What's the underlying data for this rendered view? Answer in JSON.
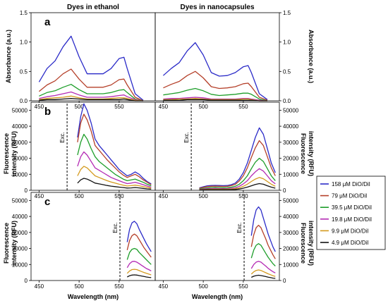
{
  "columns": [
    "Dyes in ethanol",
    "Dyes in nanocapsules"
  ],
  "y_labels": {
    "absorbance": "Absorbance (a.u.)",
    "fluorescence": [
      "Fluorescence",
      "intensity (RFU)"
    ]
  },
  "x_label": "Wavelength (nm)",
  "exc_label": "Exc.",
  "legend": [
    {
      "name": "158 μM DiO/DiI",
      "color": "#2b2bc8"
    },
    {
      "name": "79 μM DiO/DiI",
      "color": "#b5402a"
    },
    {
      "name": "39.5 μM DiO/DiI",
      "color": "#1e9e2a"
    },
    {
      "name": "19.8 μM DiO/DiI",
      "color": "#b42ab4"
    },
    {
      "name": "9.9 μM DiO/DiI",
      "color": "#d49a1e"
    },
    {
      "name": "4.9 μM DiO/DiI",
      "color": "#111111"
    }
  ],
  "chart_data": [
    {
      "id": "a-ethanol",
      "panel": "a",
      "type": "line",
      "xlim": [
        440,
        595
      ],
      "ylim": [
        0,
        1.5
      ],
      "xticks": [
        450,
        500,
        550
      ],
      "yticks": [
        0.0,
        0.5,
        1.0,
        1.5
      ],
      "ytick_labels": [
        "0.0",
        "0.5",
        "1.0",
        "1.5"
      ],
      "x": [
        450,
        460,
        470,
        480,
        490,
        500,
        510,
        520,
        530,
        540,
        550,
        556,
        560,
        570,
        580
      ],
      "series": [
        {
          "values": [
            0.32,
            0.55,
            0.68,
            0.92,
            1.1,
            0.75,
            0.46,
            0.46,
            0.46,
            0.55,
            0.72,
            0.74,
            0.55,
            0.12,
            0.01
          ]
        },
        {
          "values": [
            0.16,
            0.27,
            0.34,
            0.46,
            0.54,
            0.37,
            0.23,
            0.23,
            0.23,
            0.27,
            0.36,
            0.37,
            0.27,
            0.06,
            0.0
          ]
        },
        {
          "values": [
            0.08,
            0.14,
            0.17,
            0.23,
            0.28,
            0.19,
            0.12,
            0.12,
            0.12,
            0.14,
            0.18,
            0.19,
            0.14,
            0.03,
            0.0
          ]
        },
        {
          "values": [
            0.04,
            0.07,
            0.09,
            0.12,
            0.15,
            0.1,
            0.06,
            0.06,
            0.06,
            0.07,
            0.09,
            0.1,
            0.07,
            0.02,
            0.0
          ]
        },
        {
          "values": [
            0.02,
            0.04,
            0.05,
            0.06,
            0.08,
            0.05,
            0.03,
            0.03,
            0.03,
            0.04,
            0.05,
            0.05,
            0.04,
            0.01,
            0.0
          ]
        },
        {
          "values": [
            0.01,
            0.02,
            0.02,
            0.03,
            0.04,
            0.03,
            0.02,
            0.02,
            0.02,
            0.02,
            0.02,
            0.03,
            0.02,
            0.0,
            0.0
          ]
        }
      ]
    },
    {
      "id": "a-nano",
      "panel": "",
      "type": "line",
      "xlim": [
        440,
        595
      ],
      "ylim": [
        0,
        1.5
      ],
      "xticks": [
        450,
        500,
        550
      ],
      "yticks": [
        0.0,
        0.5,
        1.0,
        1.5
      ],
      "ytick_labels": [
        "0.0",
        "0.5",
        "1.0",
        "1.5"
      ],
      "x": [
        450,
        460,
        470,
        480,
        490,
        500,
        510,
        520,
        530,
        540,
        550,
        556,
        560,
        570,
        580
      ],
      "series": [
        {
          "values": [
            0.43,
            0.55,
            0.65,
            0.85,
            0.99,
            0.78,
            0.48,
            0.42,
            0.43,
            0.48,
            0.58,
            0.6,
            0.48,
            0.12,
            0.02
          ]
        },
        {
          "values": [
            0.22,
            0.28,
            0.33,
            0.43,
            0.5,
            0.39,
            0.24,
            0.21,
            0.22,
            0.24,
            0.29,
            0.3,
            0.24,
            0.06,
            0.01
          ]
        },
        {
          "values": [
            0.1,
            0.12,
            0.14,
            0.18,
            0.21,
            0.17,
            0.11,
            0.09,
            0.1,
            0.11,
            0.13,
            0.13,
            0.11,
            0.03,
            0.0
          ]
        },
        {
          "values": [
            0.03,
            0.04,
            0.04,
            0.05,
            0.06,
            0.05,
            0.03,
            0.03,
            0.03,
            0.03,
            0.04,
            0.04,
            0.03,
            0.01,
            0.0
          ]
        },
        {
          "values": [
            0.02,
            0.02,
            0.03,
            0.03,
            0.04,
            0.03,
            0.02,
            0.02,
            0.02,
            0.02,
            0.03,
            0.03,
            0.02,
            0.0,
            0.0
          ]
        },
        {
          "values": [
            0.01,
            0.01,
            0.01,
            0.02,
            0.02,
            0.02,
            0.01,
            0.01,
            0.01,
            0.01,
            0.01,
            0.01,
            0.01,
            0.0,
            0.0
          ]
        }
      ]
    },
    {
      "id": "b-ethanol",
      "panel": "b",
      "type": "line",
      "xlim": [
        440,
        595
      ],
      "ylim": [
        0,
        55000
      ],
      "xticks": [
        450,
        500,
        550
      ],
      "yticks": [
        0,
        10000,
        20000,
        30000,
        40000,
        50000
      ],
      "ytick_labels": [
        "0",
        "10000",
        "20000",
        "30000",
        "40000",
        "50000"
      ],
      "exc_x": 485,
      "x": [
        498,
        502,
        506,
        510,
        515,
        520,
        525,
        530,
        535,
        540,
        545,
        550,
        555,
        560,
        565,
        570,
        575,
        580,
        585,
        590
      ],
      "series": [
        {
          "values": [
            33000,
            46000,
            54000,
            50000,
            42000,
            32000,
            28000,
            25000,
            22000,
            19000,
            16000,
            13000,
            11000,
            9000,
            10000,
            11500,
            10000,
            7500,
            5500,
            4000
          ]
        },
        {
          "values": [
            30000,
            42000,
            47500,
            44000,
            37000,
            28000,
            25000,
            22000,
            19000,
            16500,
            14000,
            11500,
            9500,
            8000,
            9000,
            10000,
            8500,
            6500,
            5000,
            3500
          ]
        },
        {
          "values": [
            22000,
            30000,
            35000,
            32000,
            26000,
            21000,
            18000,
            16000,
            14000,
            12000,
            10000,
            8500,
            7000,
            6000,
            6500,
            7000,
            6000,
            5000,
            3800,
            2800
          ]
        },
        {
          "values": [
            15000,
            21000,
            24000,
            22000,
            18000,
            14000,
            12500,
            11000,
            9500,
            8000,
            7000,
            6000,
            5000,
            4200,
            4500,
            5000,
            4300,
            3500,
            2700,
            2000
          ]
        },
        {
          "values": [
            9000,
            13000,
            15000,
            14000,
            11500,
            9000,
            8000,
            7000,
            6000,
            5200,
            4500,
            3800,
            3200,
            2700,
            2900,
            3200,
            2800,
            2300,
            1800,
            1300
          ]
        },
        {
          "values": [
            4500,
            6500,
            7500,
            7000,
            5800,
            4500,
            4000,
            3500,
            3000,
            2600,
            2300,
            2000,
            1700,
            1400,
            1500,
            1700,
            1500,
            1200,
            900,
            700
          ]
        }
      ]
    },
    {
      "id": "b-nano",
      "panel": "",
      "type": "line",
      "xlim": [
        440,
        595
      ],
      "ylim": [
        0,
        55000
      ],
      "xticks": [
        450,
        500,
        550
      ],
      "yticks": [
        0,
        10000,
        20000,
        30000,
        40000,
        50000
      ],
      "ytick_labels": [
        "0",
        "10000",
        "20000",
        "30000",
        "40000",
        "50000"
      ],
      "exc_x": 485,
      "x": [
        495,
        500,
        505,
        510,
        515,
        520,
        525,
        530,
        535,
        540,
        545,
        550,
        555,
        560,
        565,
        570,
        575,
        580,
        585,
        590
      ],
      "series": [
        {
          "values": [
            1500,
            2200,
            2800,
            3000,
            3100,
            3000,
            2900,
            3000,
            3500,
            4500,
            7000,
            11000,
            17000,
            25000,
            33000,
            39000,
            35000,
            26000,
            17000,
            11000
          ]
        },
        {
          "values": [
            1200,
            1800,
            2300,
            2500,
            2600,
            2500,
            2400,
            2500,
            2900,
            3700,
            5800,
            9000,
            14000,
            20500,
            26500,
            31000,
            28000,
            21000,
            14000,
            9000
          ]
        },
        {
          "values": [
            800,
            1200,
            1500,
            1700,
            1800,
            1700,
            1600,
            1700,
            2000,
            2500,
            3800,
            6000,
            9000,
            13500,
            17500,
            20000,
            18000,
            13500,
            9000,
            6000
          ]
        },
        {
          "values": [
            500,
            800,
            1000,
            1100,
            1200,
            1100,
            1000,
            1100,
            1300,
            1600,
            2500,
            4000,
            6000,
            9000,
            11500,
            13500,
            12000,
            9000,
            6000,
            4000
          ]
        },
        {
          "values": [
            300,
            500,
            600,
            700,
            700,
            700,
            650,
            700,
            800,
            1000,
            1500,
            2500,
            3800,
            5500,
            7000,
            8000,
            7200,
            5500,
            3800,
            2500
          ]
        },
        {
          "values": [
            200,
            300,
            350,
            400,
            400,
            400,
            350,
            400,
            450,
            550,
            800,
            1300,
            2000,
            2800,
            3600,
            4200,
            3800,
            2800,
            2000,
            1300
          ]
        }
      ]
    },
    {
      "id": "c-ethanol",
      "panel": "c",
      "type": "line",
      "xlim": [
        440,
        595
      ],
      "ylim": [
        0,
        55000
      ],
      "xticks": [
        450,
        500,
        550
      ],
      "yticks": [
        0,
        10000,
        20000,
        30000,
        40000,
        50000
      ],
      "ytick_labels": [
        "0",
        "10000",
        "20000",
        "30000",
        "40000",
        "50000"
      ],
      "exc_x": 551,
      "x": [
        560,
        563,
        566,
        569,
        572,
        575,
        578,
        581,
        584,
        587,
        590
      ],
      "series": [
        {
          "values": [
            24000,
            32000,
            36000,
            37000,
            35500,
            32000,
            29000,
            26000,
            23000,
            20500,
            18000
          ]
        },
        {
          "values": [
            19000,
            25000,
            28000,
            29000,
            28000,
            25500,
            23000,
            20500,
            18500,
            16500,
            14500
          ]
        },
        {
          "values": [
            13000,
            17500,
            19500,
            20000,
            19500,
            17500,
            16000,
            14500,
            13000,
            11500,
            10000
          ]
        },
        {
          "values": [
            8000,
            10500,
            11800,
            12000,
            11500,
            10500,
            9500,
            8500,
            7500,
            6800,
            6000
          ]
        },
        {
          "values": [
            4500,
            6000,
            6800,
            7000,
            6800,
            6200,
            5600,
            5000,
            4500,
            4000,
            3500
          ]
        },
        {
          "values": [
            2200,
            3000,
            3400,
            3500,
            3400,
            3100,
            2800,
            2500,
            2200,
            2000,
            1800
          ]
        }
      ]
    },
    {
      "id": "c-nano",
      "panel": "",
      "type": "line",
      "xlim": [
        440,
        595
      ],
      "ylim": [
        0,
        55000
      ],
      "xticks": [
        450,
        500,
        550
      ],
      "yticks": [
        0,
        10000,
        20000,
        30000,
        40000,
        50000
      ],
      "ytick_labels": [
        "0",
        "10000",
        "20000",
        "30000",
        "40000",
        "50000"
      ],
      "exc_x": 551,
      "x": [
        560,
        563,
        566,
        569,
        572,
        575,
        578,
        581,
        584,
        587,
        590
      ],
      "series": [
        {
          "values": [
            28000,
            38000,
            44000,
            46000,
            44000,
            39000,
            34000,
            29000,
            25000,
            21000,
            18000
          ]
        },
        {
          "values": [
            21000,
            28500,
            33000,
            34500,
            33000,
            29500,
            26000,
            22000,
            19000,
            16000,
            13500
          ]
        },
        {
          "values": [
            14000,
            19000,
            22000,
            23000,
            22000,
            19500,
            17000,
            14500,
            12500,
            10500,
            9000
          ]
        },
        {
          "values": [
            7500,
            10000,
            11500,
            12000,
            11500,
            10200,
            9000,
            7600,
            6500,
            5500,
            4700
          ]
        },
        {
          "values": [
            4000,
            5400,
            6300,
            6600,
            6300,
            5600,
            4900,
            4200,
            3600,
            3000,
            2600
          ]
        },
        {
          "values": [
            2000,
            2700,
            3100,
            3300,
            3100,
            2800,
            2450,
            2100,
            1800,
            1500,
            1300
          ]
        }
      ]
    }
  ]
}
